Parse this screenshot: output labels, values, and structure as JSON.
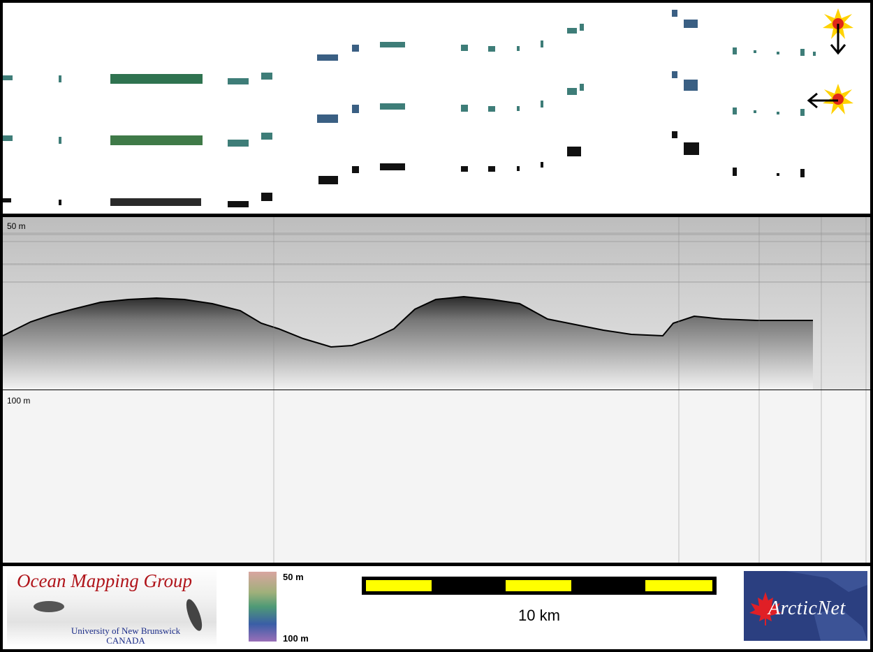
{
  "echogram": {
    "depth_top_label": "50 m",
    "depth_mid_label": "100 m"
  },
  "footer": {
    "logo_title": "Ocean Mapping Group",
    "logo_line1": "University of New Brunswick",
    "logo_line2": "CANADA",
    "colorbar_top": "50 m",
    "colorbar_bottom": "100 m",
    "scale_label": "10 km",
    "partner_logo": "ArcticNet"
  },
  "colors": {
    "scale_bar_fill": "#ffff00",
    "logo_red": "#b0141a",
    "logo_blue": "#1b2c88",
    "arcticnet_bg": "#2b3f80"
  },
  "icons": [
    "sun-icon",
    "arrow-down-icon",
    "arrow-left-icon",
    "maple-leaf-icon"
  ]
}
